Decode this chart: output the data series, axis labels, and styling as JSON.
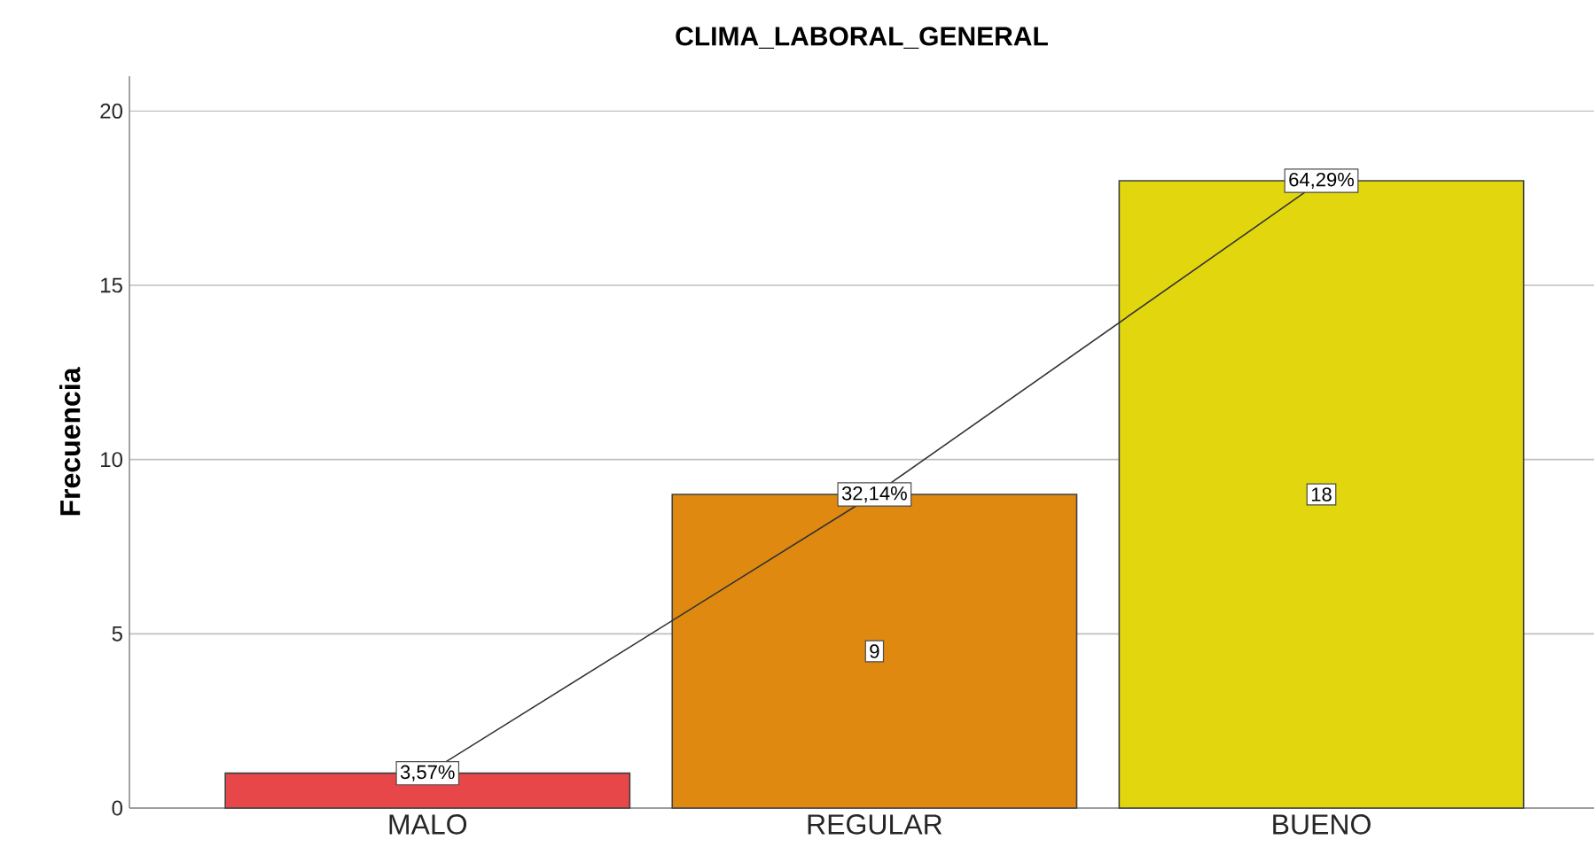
{
  "chart_data": {
    "type": "bar",
    "title": "CLIMA_LABORAL_GENERAL",
    "ylabel": "Frecuencia",
    "categories": [
      "MALO",
      "REGULAR",
      "BUENO"
    ],
    "ylim": [
      0,
      21
    ],
    "yticks": [
      0,
      5,
      10,
      15,
      20
    ],
    "grid": "y",
    "y2lim": [
      0,
      75
    ],
    "series": [
      {
        "colors": [
          "#e8474a",
          "#df8911",
          "#e2d70f"
        ],
        "values": [
          1,
          9,
          18
        ],
        "value_labels": [
          null,
          "9",
          "18"
        ]
      },
      {
        "type": "line",
        "axis": "y2",
        "marker": "square",
        "color": "#333333",
        "values": [
          3.57,
          32.14,
          64.29
        ],
        "value_labels": [
          "3,57%",
          "32,14%",
          "64,29%"
        ]
      }
    ]
  }
}
